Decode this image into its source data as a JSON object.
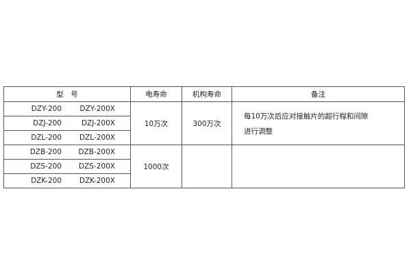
{
  "table": {
    "headers": [
      "型　号",
      "电寿命",
      "机构寿命",
      "备注"
    ],
    "models": [
      [
        "DZY-200",
        "DZY-200X"
      ],
      [
        "DZJ-200",
        "DZJ-200X"
      ],
      [
        "DZL-200",
        "DZL-200X"
      ],
      [
        "DZB-200",
        "DZB-200X"
      ],
      [
        "DZS-200",
        "DZS-200X"
      ],
      [
        "DZK-200",
        "DZK-200X"
      ]
    ],
    "group1": {
      "electrical_life": "10万次",
      "mechanical_life": "300万次",
      "note_line1": "每10万次后应对接触片的超行程和间隙",
      "note_line2": "进行调整"
    },
    "group2": {
      "electrical_life": "1000次",
      "mechanical_life": "",
      "note_line1": ""
    }
  }
}
